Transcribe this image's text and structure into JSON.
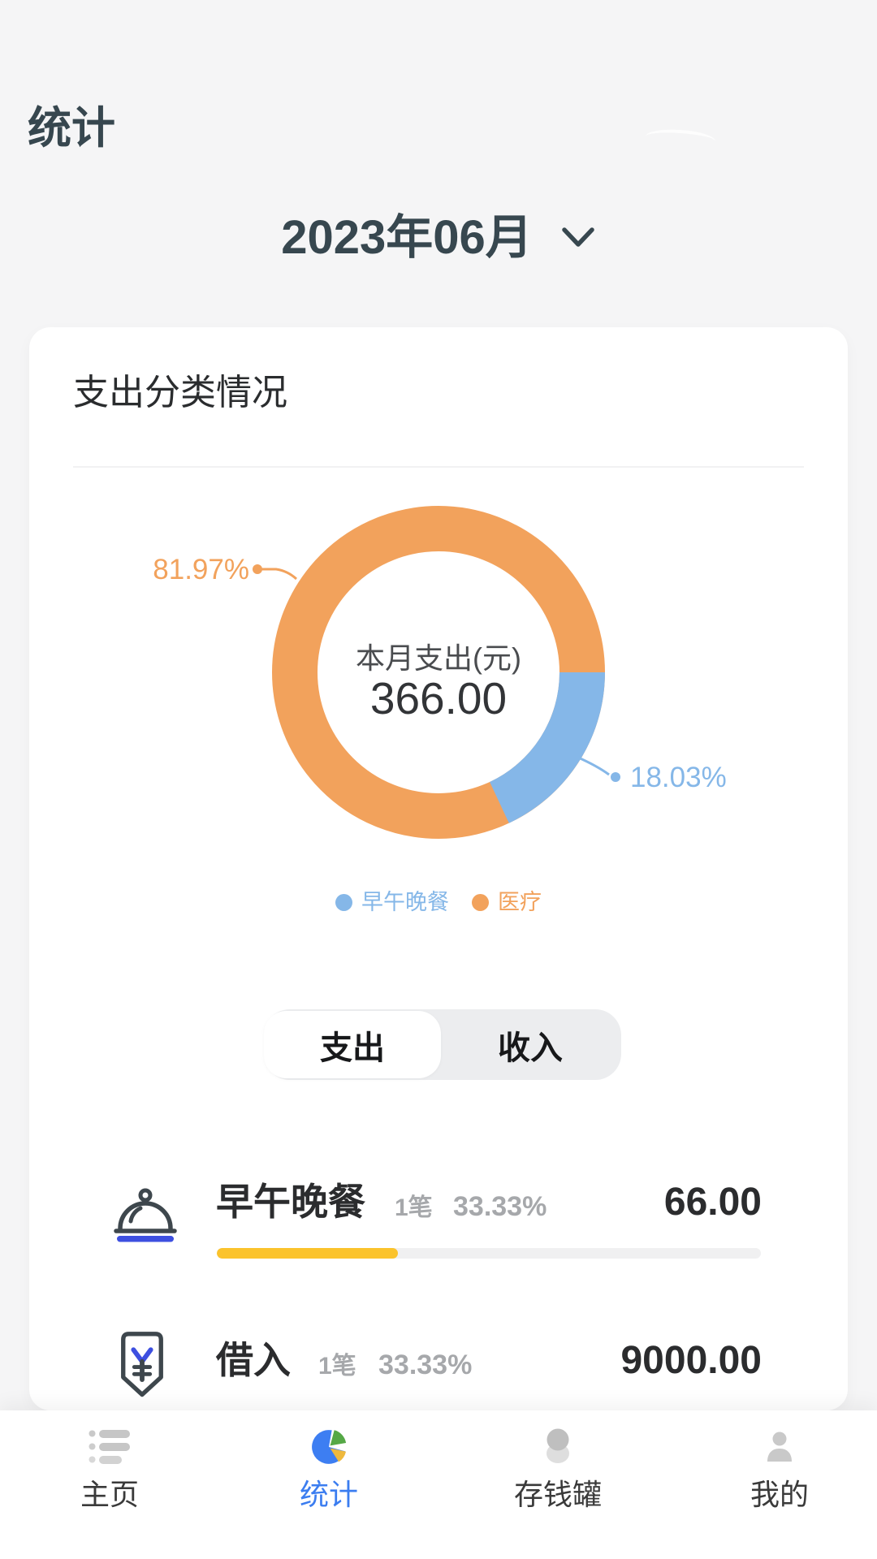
{
  "header": {
    "title": "统计"
  },
  "month_selector": {
    "value": "2023年06月",
    "chevron_icon": "chevron-down-icon"
  },
  "expense_card": {
    "title": "支出分类情况"
  },
  "chart_data": {
    "type": "pie",
    "title": "支出分类情况",
    "donut": true,
    "center_label": "本月支出(元)",
    "center_total": "366.00",
    "legend_position": "bottom",
    "series": [
      {
        "name": "早午晚餐",
        "percent": 18.03,
        "percent_label": "18.03%",
        "color": "#85B7E8"
      },
      {
        "name": "医疗",
        "percent": 81.97,
        "percent_label": "81.97%",
        "color": "#F2A25C"
      }
    ]
  },
  "toggle": {
    "options": [
      "支出",
      "收入"
    ],
    "active": "支出",
    "active_index": 0
  },
  "category_list": [
    {
      "icon": "meal-cloche-icon",
      "name": "早午晚餐",
      "count": "1笔",
      "percent": "33.33%",
      "amount": "66.00",
      "progress_percent": 33.33,
      "progress_color": "#FBC32C"
    },
    {
      "icon": "borrow-in-icon",
      "name": "借入",
      "count": "1笔",
      "percent": "33.33%",
      "amount": "9000.00"
    }
  ],
  "bottom_nav": {
    "active_color": "#3B7DF0",
    "items": [
      {
        "label": "主页",
        "icon": "home-list-icon",
        "active": false
      },
      {
        "label": "统计",
        "icon": "pie-chart-icon",
        "active": true
      },
      {
        "label": "存钱罐",
        "icon": "piggy-bank-icon",
        "active": false
      },
      {
        "label": "我的",
        "icon": "profile-icon",
        "active": false
      }
    ]
  },
  "colors": {
    "background": "#F5F5F6",
    "header_text": "#37474F",
    "card_bg": "#FFFFFF",
    "chart_blue": "#85B7E8",
    "chart_orange": "#F2A25C",
    "progress_yellow": "#FBC32C",
    "icon_dark": "#3E474D",
    "icon_blue": "#3D4FE0",
    "nav_active_blue": "#3B7DF0",
    "muted_text": "#A6A8AB"
  }
}
